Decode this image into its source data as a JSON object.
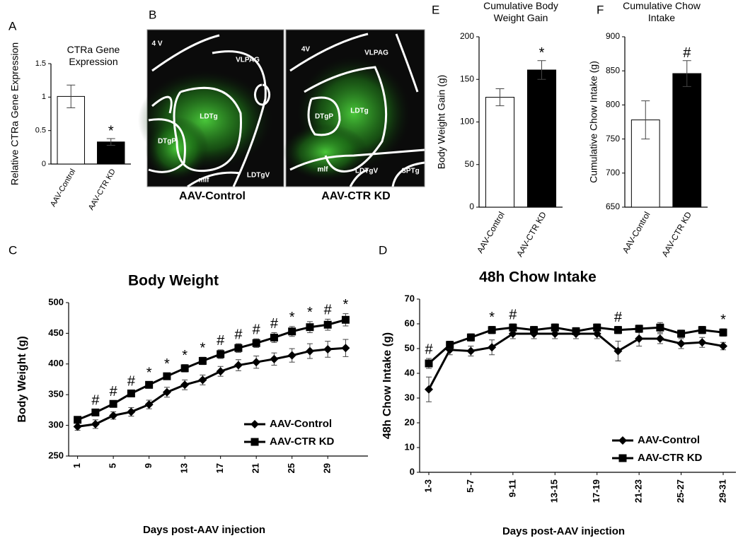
{
  "chart_data": [
    {
      "type": "bar",
      "panel": "A",
      "title": "CTRa Gene Expression",
      "ylabel": "Relative CTRa Gene Expression",
      "categories": [
        "AAV-Control",
        "AAV-CTR KD"
      ],
      "values": [
        1.01,
        0.33
      ],
      "errors": [
        0.17,
        0.05
      ],
      "colors": [
        "#ffffff",
        "#000000"
      ],
      "annotations": [
        null,
        "*"
      ],
      "ylim": [
        0,
        1.5
      ],
      "yticks": [
        0,
        0.5,
        1,
        1.5
      ]
    },
    {
      "type": "bar",
      "panel": "E",
      "title": "Cumulative Body Weight Gain",
      "ylabel": "Body Weight Gain (g)",
      "categories": [
        "AAV-Control",
        "AAV-CTR KD"
      ],
      "values": [
        129,
        161
      ],
      "errors": [
        10,
        11
      ],
      "colors": [
        "#ffffff",
        "#000000"
      ],
      "annotations": [
        null,
        "*"
      ],
      "ylim": [
        0,
        200
      ],
      "yticks": [
        0,
        50,
        100,
        150,
        200
      ]
    },
    {
      "type": "bar",
      "panel": "F",
      "title": "Cumulative Chow Intake",
      "ylabel": "Cumulative Chow Intake (g)",
      "categories": [
        "AAV-Control",
        "AAV-CTR KD"
      ],
      "values": [
        778,
        846
      ],
      "errors": [
        28,
        19
      ],
      "colors": [
        "#ffffff",
        "#000000"
      ],
      "annotations": [
        null,
        "#"
      ],
      "ylim": [
        650,
        900
      ],
      "yticks": [
        650,
        700,
        750,
        800,
        850,
        900
      ]
    },
    {
      "type": "line",
      "panel": "C",
      "title": "Body Weight",
      "xlabel": "Days post-AAV injection",
      "ylabel": "Body Weight (g)",
      "x": [
        1,
        3,
        5,
        7,
        9,
        11,
        13,
        15,
        17,
        19,
        21,
        23,
        25,
        27,
        29,
        31
      ],
      "series": [
        {
          "name": "AAV-Control",
          "color": "#000000",
          "marker": "diamond",
          "values": [
            298,
            302,
            316,
            322,
            334,
            354,
            366,
            374,
            388,
            398,
            403,
            408,
            414,
            421,
            424,
            426
          ],
          "errors": [
            6,
            7,
            6,
            7,
            7,
            8,
            8,
            8,
            8,
            9,
            10,
            10,
            11,
            12,
            13,
            14
          ]
        },
        {
          "name": "AAV-CTR KD",
          "color": "#000000",
          "marker": "square",
          "values": [
            309,
            321,
            335,
            352,
            366,
            380,
            393,
            405,
            416,
            426,
            434,
            443,
            453,
            460,
            464,
            472
          ],
          "errors": [
            5,
            5,
            5,
            5,
            5,
            5,
            6,
            6,
            7,
            7,
            7,
            8,
            8,
            9,
            9,
            10
          ]
        }
      ],
      "annotations": [
        null,
        "#",
        "#",
        "#",
        "*",
        "*",
        "*",
        "*",
        "#",
        "#",
        "#",
        "#",
        "*",
        "*",
        "#",
        "*"
      ],
      "xlim": [
        0,
        33.5
      ],
      "xticks": [
        1,
        5,
        9,
        13,
        17,
        21,
        25,
        29
      ],
      "ylim": [
        250,
        500
      ],
      "yticks": [
        250,
        300,
        350,
        400,
        450,
        500
      ],
      "legend": "lower right"
    },
    {
      "type": "line",
      "panel": "D",
      "title": "48h Chow Intake",
      "xlabel": "Days post-AAV injection",
      "ylabel": "48h Chow Intake (g)",
      "categories": [
        "1-3",
        null,
        "5-7",
        null,
        "9-11",
        null,
        "13-15",
        null,
        "17-19",
        null,
        "21-23",
        null,
        "25-27",
        null,
        "29-31"
      ],
      "series": [
        {
          "name": "AAV-Control",
          "color": "#000000",
          "marker": "diamond",
          "values": [
            33.5,
            49.5,
            49,
            50.5,
            56,
            56,
            56,
            56,
            56,
            49,
            54,
            54,
            52,
            52.5,
            51
          ],
          "errors": [
            5,
            2,
            2,
            3,
            2,
            2,
            2,
            2,
            2,
            4,
            3,
            2,
            2,
            2,
            1.5
          ]
        },
        {
          "name": "AAV-CTR KD",
          "color": "#000000",
          "marker": "square",
          "values": [
            44,
            51.5,
            54.5,
            57.5,
            58.5,
            57.5,
            58.5,
            57,
            58.5,
            57.5,
            58,
            58.5,
            56,
            57.5,
            56.5
          ],
          "errors": [
            2,
            1.5,
            1.5,
            1.5,
            1.5,
            1.5,
            1.5,
            1.5,
            1.5,
            1.5,
            1.5,
            2,
            1.5,
            1.5,
            1.5
          ]
        }
      ],
      "annotations": [
        "#",
        null,
        null,
        "*",
        "#",
        null,
        null,
        null,
        null,
        "#",
        null,
        null,
        null,
        null,
        "*"
      ],
      "ylim": [
        0,
        70
      ],
      "yticks": [
        0,
        10,
        20,
        30,
        40,
        50,
        60,
        70
      ],
      "legend": "lower right"
    }
  ],
  "panel_b": {
    "panel": "B",
    "images": [
      {
        "caption": "AAV-Control",
        "labels": [
          "4 V",
          "VLPAG",
          "LDTg",
          "DTgP",
          "mlf",
          "LDTgV"
        ]
      },
      {
        "caption": "AAV-CTR KD",
        "labels": [
          "4V",
          "VLPAG",
          "DTgP",
          "LDTg",
          "mlf",
          "LDTgV",
          "SPTg"
        ]
      }
    ]
  }
}
